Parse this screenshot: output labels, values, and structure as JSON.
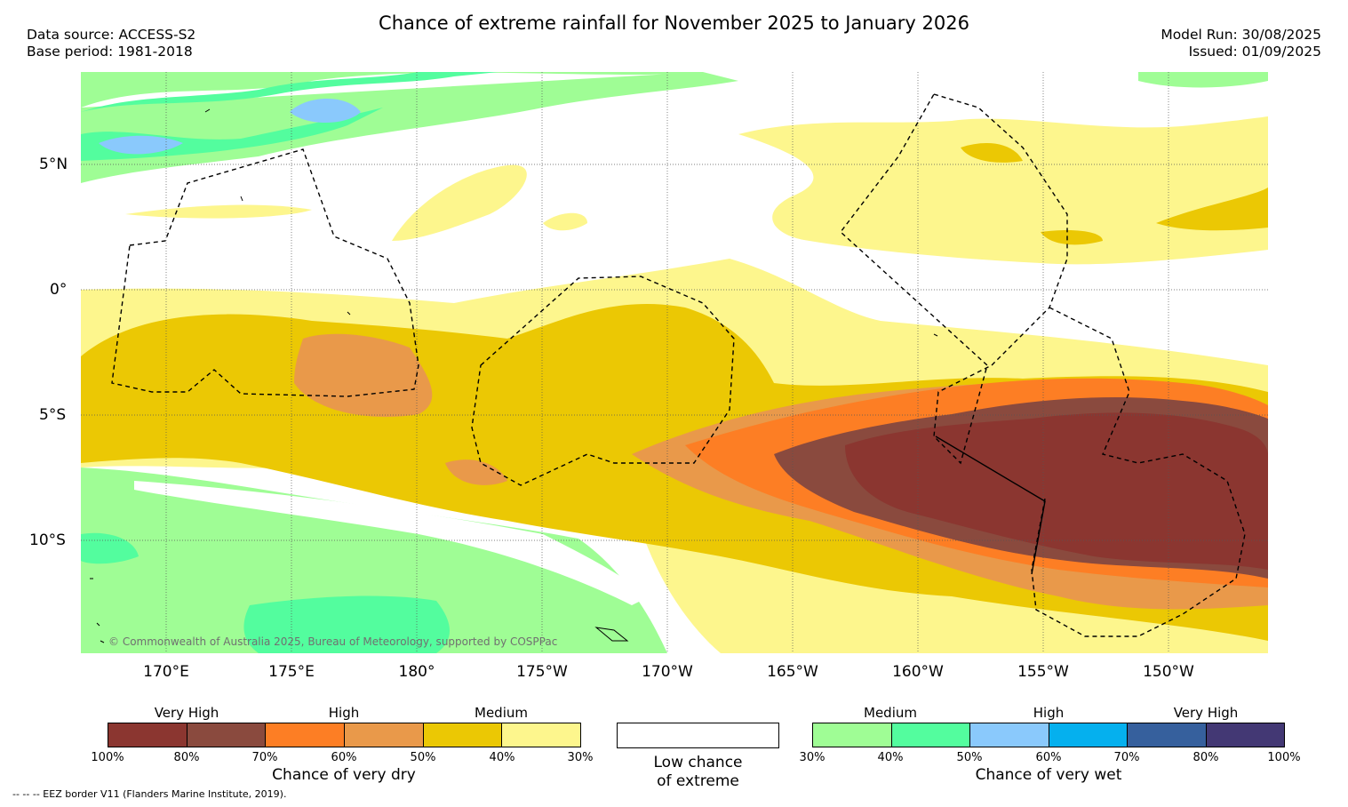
{
  "title": "Chance of extreme rainfall for November 2025 to January 2026",
  "meta": {
    "data_source": "Data source: ACCESS-S2",
    "base_period": "Base period: 1981-2018",
    "model_run": "Model Run: 30/08/2025",
    "issued": "Issued: 01/09/2025"
  },
  "map": {
    "lat_labels": [
      "5°N",
      "0°",
      "5°S",
      "10°S"
    ],
    "lon_labels": [
      "170°E",
      "175°E",
      "180°",
      "175°W",
      "170°W",
      "165°W",
      "160°W",
      "155°W",
      "150°W"
    ],
    "copyright": "© Commonwealth of Australia 2025, Bureau of Meteorology, supported by COSPPac",
    "colors": {
      "dry_very_high_1": "#8b3630",
      "dry_very_high_2": "#8a4a3e",
      "dry_high_1": "#fd7e24",
      "dry_high_2": "#e9994a",
      "dry_medium_1": "#ebc804",
      "dry_medium_2": "#fdf68d",
      "wet_medium_1": "#9ffd95",
      "wet_medium_2": "#53fd9e",
      "wet_high_1": "#8ac9fc",
      "wet_high_2": "#05b0ee",
      "wet_very_high_1": "#36609d",
      "wet_very_high_2": "#433874"
    }
  },
  "legend": {
    "dry": {
      "groups": [
        "Very High",
        "High",
        "Medium"
      ],
      "ticks": [
        "100%",
        "80%",
        "70%",
        "60%",
        "50%",
        "40%",
        "30%"
      ],
      "label": "Chance of very dry",
      "colors": [
        "#8b3630",
        "#8a4a3e",
        "#fd7e24",
        "#e9994a",
        "#ebc804",
        "#fdf68d"
      ]
    },
    "neutral": {
      "line1": "Low chance",
      "line2": "of extreme"
    },
    "wet": {
      "groups": [
        "Medium",
        "High",
        "Very High"
      ],
      "ticks": [
        "30%",
        "40%",
        "50%",
        "60%",
        "70%",
        "80%",
        "100%"
      ],
      "label": "Chance of very wet",
      "colors": [
        "#9ffd95",
        "#53fd9e",
        "#8ac9fc",
        "#05b0ee",
        "#36609d",
        "#433874"
      ]
    }
  },
  "footer": "--  --  -- EEZ border V11 (Flanders Marine Institute, 2019)."
}
